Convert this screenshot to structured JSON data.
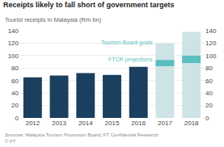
{
  "chart_data": {
    "type": "bar",
    "title": "Receipts likely to fall short of government targets",
    "subtitle": "Tourist receipts in Malaysia (Rm bn)",
    "source": "Sources: Malaysia Tourism Promotion Board; FT Confidential Research\n© FT",
    "categories": [
      "2012",
      "2013",
      "2014",
      "2015",
      "2016",
      "2017",
      "2018"
    ],
    "series": [
      {
        "color": "#1b3f5e",
        "values": [
          65,
          68,
          72,
          69,
          82,
          null,
          null
        ]
      },
      {
        "color": "#cde3e5",
        "values": [
          null,
          null,
          null,
          null,
          null,
          120,
          138
        ]
      },
      {
        "color": "#5bbfbf",
        "values": [
          null,
          null,
          null,
          null,
          null,
          93,
          100
        ],
        "low": [
          null,
          null,
          null,
          null,
          null,
          83,
          88
        ]
      }
    ],
    "annotations": [
      {
        "text": "Tourism Board goals",
        "x": "2017",
        "y": 120,
        "color": "#5bbfbf"
      },
      {
        "text": "FTCR projections",
        "x": "2017",
        "y": 93,
        "color": "#5bbfbf"
      }
    ],
    "ylim": [
      0,
      140
    ],
    "yticks": [
      0,
      20,
      40,
      60,
      80,
      100,
      120,
      140
    ],
    "y2lim": [
      0,
      140
    ],
    "y2ticks": [
      0,
      20,
      40,
      60,
      80,
      100,
      120,
      140
    ],
    "grid": true
  }
}
